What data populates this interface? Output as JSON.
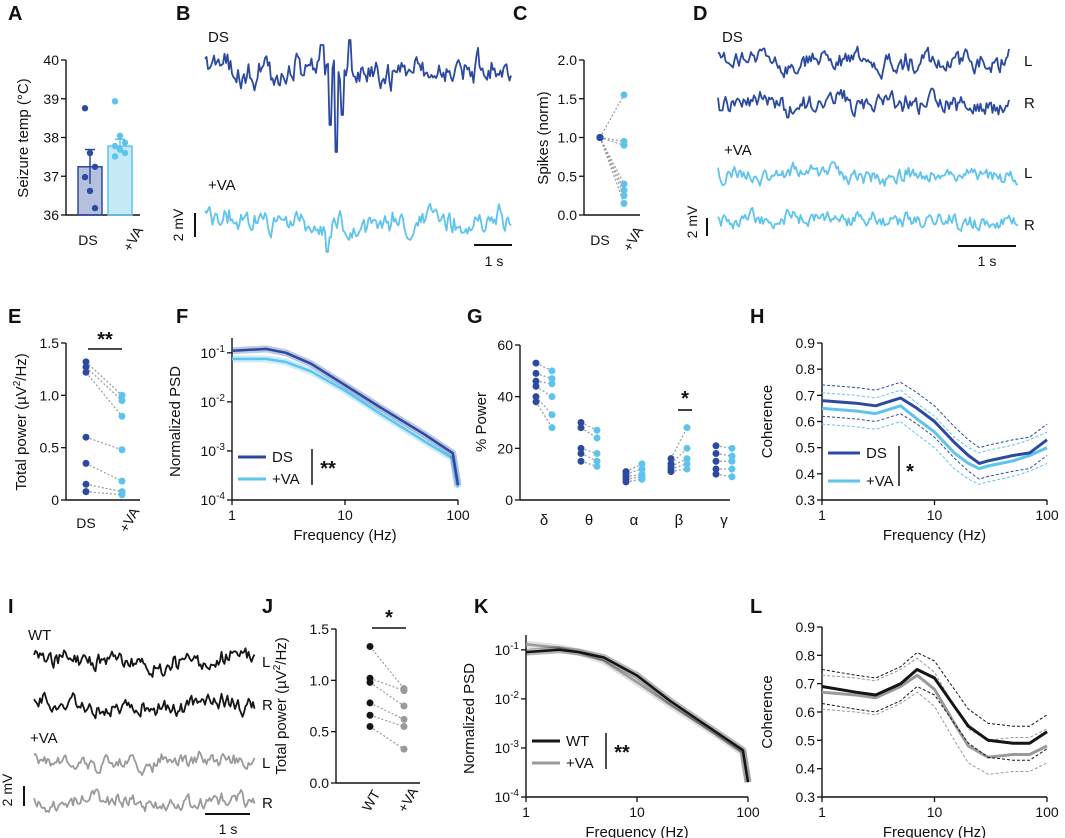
{
  "colors": {
    "ds": "#2b4aa0",
    "va": "#5ec4ee",
    "wt": "#151515",
    "wtva": "#9a9a9a",
    "grey": "#8a8a8a"
  },
  "panels": [
    "A",
    "B",
    "C",
    "D",
    "E",
    "F",
    "G",
    "H",
    "I",
    "J",
    "K",
    "L"
  ],
  "chart_data": [
    {
      "panel": "A",
      "type": "bar",
      "ylabel": "Seizure temp (°C)",
      "ylim": [
        35.5,
        40
      ],
      "yticks": [
        "36",
        "37",
        "38",
        "39",
        "40"
      ],
      "categories": [
        "DS",
        "+VA"
      ],
      "values": [
        36.9,
        37.5
      ],
      "sem": [
        0.5,
        0.2
      ],
      "points": [
        [
          38.6,
          37.3,
          36.9,
          36.6,
          36.2,
          35.7
        ],
        [
          38.8,
          37.8,
          37.6,
          37.5,
          37.4,
          37.3,
          37.2
        ]
      ]
    },
    {
      "panel": "B",
      "type": "line",
      "traces": [
        "DS",
        "+VA"
      ],
      "scalebar_y": "2 mV",
      "scalebar_x": "1 s"
    },
    {
      "panel": "C",
      "type": "scatter",
      "ylabel": "Spikes (norm)",
      "ylim": [
        0,
        2
      ],
      "yticks": [
        "0.0",
        "0.5",
        "1.0",
        "1.5",
        "2.0"
      ],
      "categories": [
        "DS",
        "+VA"
      ],
      "pairs": [
        [
          1,
          1.55
        ],
        [
          1,
          0.95
        ],
        [
          1,
          0.9
        ],
        [
          1,
          0.4
        ],
        [
          1,
          0.32
        ],
        [
          1,
          0.25
        ],
        [
          1,
          0.15
        ]
      ]
    },
    {
      "panel": "D",
      "type": "line",
      "traces": [
        "DS",
        "+VA"
      ],
      "channels": [
        "L",
        "R",
        "L",
        "R"
      ],
      "scalebar_y": "2 mV",
      "scalebar_x": "1 s"
    },
    {
      "panel": "E",
      "type": "scatter",
      "ylabel_prefix": "Total power  (µV",
      "ylabel_sup": "2",
      "ylabel_suffix": "/Hz)",
      "ylim": [
        0,
        1.5
      ],
      "yticks": [
        "0",
        "0.5",
        "1.0",
        "1.5"
      ],
      "categories": [
        "DS",
        "+VA"
      ],
      "significance": "**",
      "pairs": [
        [
          1.32,
          1.0
        ],
        [
          1.27,
          0.95
        ],
        [
          1.22,
          0.8
        ],
        [
          0.6,
          0.48
        ],
        [
          0.35,
          0.18
        ],
        [
          0.15,
          0.08
        ],
        [
          0.08,
          0.05
        ]
      ]
    },
    {
      "panel": "F",
      "type": "line",
      "ylabel": "Normalized PSD",
      "xlabel": "Frequency (Hz)",
      "xticks": [
        "1",
        "10",
        "100"
      ],
      "yticks": [
        "10-4",
        "10-3",
        "10-2",
        "10-1"
      ],
      "series": [
        {
          "name": "DS",
          "x": [
            1,
            2,
            3,
            5,
            10,
            20,
            50,
            90,
            100
          ],
          "y": [
            0.11,
            0.12,
            0.1,
            0.06,
            0.022,
            0.008,
            0.0022,
            0.0009,
            0.0002
          ]
        },
        {
          "name": "+VA",
          "x": [
            1,
            2,
            3,
            5,
            10,
            20,
            50,
            90,
            100
          ],
          "y": [
            0.075,
            0.075,
            0.065,
            0.042,
            0.017,
            0.006,
            0.0016,
            0.0007,
            0.00018
          ]
        }
      ],
      "legend": [
        "DS",
        "+VA"
      ],
      "significance": "**"
    },
    {
      "panel": "G",
      "type": "scatter",
      "ylabel": "% Power",
      "ylim": [
        0,
        60
      ],
      "yticks": [
        "0",
        "20",
        "40",
        "60"
      ],
      "categories": [
        "δ",
        "θ",
        "α",
        "β",
        "γ"
      ],
      "significance": "*",
      "significance_band": "β",
      "pairs": [
        [
          [
            53,
            50
          ],
          [
            49,
            47
          ],
          [
            46,
            45
          ],
          [
            44,
            40
          ],
          [
            40,
            33
          ],
          [
            38,
            28
          ]
        ],
        [
          [
            30,
            27
          ],
          [
            28,
            24
          ],
          [
            20,
            18
          ],
          [
            18,
            15
          ],
          [
            15,
            13
          ]
        ],
        [
          [
            11,
            14
          ],
          [
            10,
            12
          ],
          [
            9,
            10
          ],
          [
            8,
            9
          ],
          [
            7,
            8
          ]
        ],
        [
          [
            16,
            28
          ],
          [
            14,
            20
          ],
          [
            13,
            16
          ],
          [
            12,
            14
          ],
          [
            11,
            12
          ]
        ],
        [
          [
            21,
            20
          ],
          [
            18,
            17
          ],
          [
            15,
            15
          ],
          [
            12,
            12
          ],
          [
            10,
            9
          ]
        ]
      ]
    },
    {
      "panel": "H",
      "type": "line",
      "ylabel": "Coherence",
      "xlabel": "Frequency (Hz)",
      "ylim": [
        0.3,
        0.9
      ],
      "yticks": [
        "0.3",
        "0.4",
        "0.5",
        "0.6",
        "0.7",
        "0.8",
        "0.9"
      ],
      "xticks": [
        "1",
        "10",
        "100"
      ],
      "series": [
        {
          "name": "DS",
          "x": [
            1,
            2,
            3,
            5,
            7,
            10,
            15,
            20,
            25,
            30,
            50,
            70,
            100
          ],
          "y": [
            0.68,
            0.67,
            0.66,
            0.69,
            0.65,
            0.6,
            0.52,
            0.47,
            0.44,
            0.45,
            0.47,
            0.48,
            0.53
          ]
        },
        {
          "name": "+VA",
          "x": [
            1,
            2,
            3,
            5,
            7,
            10,
            15,
            20,
            25,
            30,
            50,
            70,
            100
          ],
          "y": [
            0.65,
            0.64,
            0.63,
            0.66,
            0.61,
            0.56,
            0.48,
            0.44,
            0.42,
            0.43,
            0.45,
            0.47,
            0.5
          ]
        }
      ],
      "legend": [
        "DS",
        "+VA"
      ],
      "significance": "*"
    },
    {
      "panel": "I",
      "type": "line",
      "traces": [
        "WT",
        "+VA"
      ],
      "channels": [
        "L",
        "R",
        "L",
        "R"
      ],
      "scalebar_y": "2 mV",
      "scalebar_x": "1 s"
    },
    {
      "panel": "J",
      "type": "scatter",
      "ylabel_prefix": "Total power  (µV",
      "ylabel_sup": "2",
      "ylabel_suffix": "/Hz)",
      "ylim": [
        0,
        1.5
      ],
      "yticks": [
        "0.0",
        "0.5",
        "1.0",
        "1.5"
      ],
      "categories": [
        "WT",
        "+VA"
      ],
      "significance": "*",
      "pairs": [
        [
          1.33,
          0.92
        ],
        [
          1.02,
          0.9
        ],
        [
          0.98,
          0.75
        ],
        [
          0.78,
          0.62
        ],
        [
          0.66,
          0.55
        ],
        [
          0.55,
          0.33
        ]
      ]
    },
    {
      "panel": "K",
      "type": "line",
      "ylabel": "Normalized PSD",
      "xlabel": "Frequency (Hz)",
      "xticks": [
        "1",
        "10",
        "100"
      ],
      "yticks": [
        "10-4",
        "10-3",
        "10-2",
        "10-1"
      ],
      "series": [
        {
          "name": "WT",
          "x": [
            1,
            2,
            3,
            5,
            10,
            20,
            50,
            90,
            100
          ],
          "y": [
            0.09,
            0.1,
            0.09,
            0.07,
            0.03,
            0.009,
            0.0022,
            0.0009,
            0.0002
          ]
        },
        {
          "name": "+VA",
          "x": [
            1,
            2,
            3,
            5,
            10,
            20,
            50,
            90,
            100
          ],
          "y": [
            0.13,
            0.11,
            0.09,
            0.06,
            0.022,
            0.0075,
            0.002,
            0.0008,
            0.0002
          ]
        }
      ],
      "legend": [
        "WT",
        "+VA"
      ],
      "significance": "**"
    },
    {
      "panel": "L",
      "type": "line",
      "ylabel": "Coherence",
      "xlabel": "Frequency (Hz)",
      "ylim": [
        0.3,
        0.9
      ],
      "yticks": [
        "0.3",
        "0.4",
        "0.5",
        "0.6",
        "0.7",
        "0.8",
        "0.9"
      ],
      "xticks": [
        "1",
        "10",
        "100"
      ],
      "series": [
        {
          "name": "WT",
          "x": [
            1,
            2,
            3,
            5,
            7,
            10,
            15,
            20,
            30,
            50,
            70,
            100
          ],
          "y": [
            0.69,
            0.67,
            0.66,
            0.7,
            0.75,
            0.72,
            0.62,
            0.55,
            0.5,
            0.49,
            0.49,
            0.53
          ]
        },
        {
          "name": "+VA",
          "x": [
            1,
            2,
            3,
            5,
            7,
            10,
            15,
            20,
            30,
            50,
            70,
            100
          ],
          "y": [
            0.67,
            0.66,
            0.65,
            0.69,
            0.73,
            0.68,
            0.56,
            0.48,
            0.44,
            0.45,
            0.45,
            0.48
          ]
        }
      ]
    }
  ]
}
